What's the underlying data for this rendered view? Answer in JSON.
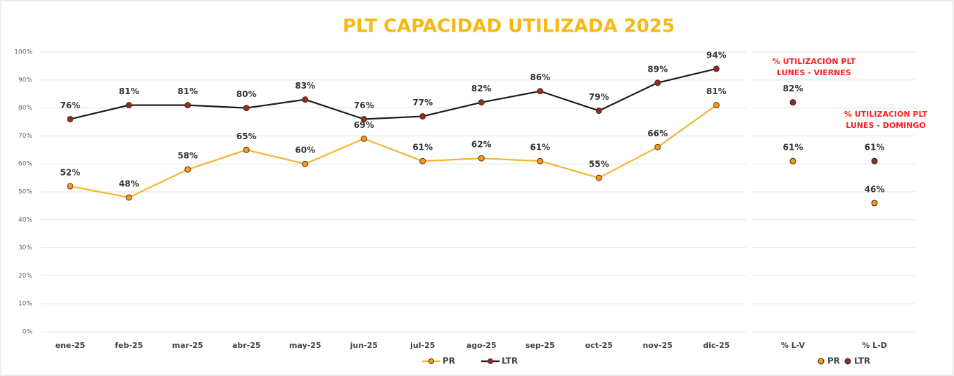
{
  "chart_data": [
    {
      "type": "line",
      "title": "PLT CAPACIDAD UTILIZADA 2025",
      "categories": [
        "ene-25",
        "feb-25",
        "mar-25",
        "abr-25",
        "may-25",
        "jun-25",
        "jul-25",
        "ago-25",
        "sep-25",
        "oct-25",
        "nov-25",
        "dic-25"
      ],
      "series": [
        {
          "name": "PR",
          "color": "#f2b632",
          "marker_color": "#f39c1e",
          "values": [
            52,
            48,
            58,
            65,
            60,
            69,
            61,
            62,
            61,
            55,
            66,
            81
          ],
          "value_labels": [
            "52%",
            "48%",
            "58%",
            "65%",
            "60%",
            "69%",
            "61%",
            "62%",
            "61%",
            "55%",
            "66%",
            "81%"
          ]
        },
        {
          "name": "LTR",
          "color": "#1c1c1c",
          "marker_color": "#8a2f2a",
          "values": [
            76,
            81,
            81,
            80,
            83,
            76,
            77,
            82,
            86,
            79,
            89,
            94
          ],
          "value_labels": [
            "76%",
            "81%",
            "81%",
            "80%",
            "83%",
            "76%",
            "77%",
            "82%",
            "86%",
            "79%",
            "89%",
            "94%"
          ]
        }
      ],
      "ylim": [
        0,
        100
      ],
      "yticks": [
        {
          "value": 0,
          "label": "0%"
        },
        {
          "value": 10,
          "label": "10%"
        },
        {
          "value": 20,
          "label": "20%"
        },
        {
          "value": 30,
          "label": "30%"
        },
        {
          "value": 40,
          "label": "40%"
        },
        {
          "value": 50,
          "label": "50%"
        },
        {
          "value": 60,
          "label": "60%"
        },
        {
          "value": 70,
          "label": "70%"
        },
        {
          "value": 80,
          "label": "80%"
        },
        {
          "value": 90,
          "label": "90%"
        },
        {
          "value": 100,
          "label": "100%"
        }
      ],
      "grid": true
    },
    {
      "type": "dot",
      "categories": [
        "% L-V",
        "% L-D"
      ],
      "series": [
        {
          "name": "PR",
          "color": "#f39c1e",
          "values": [
            61,
            46
          ],
          "value_labels": [
            "61%",
            "46%"
          ]
        },
        {
          "name": "LTR",
          "color": "#8a2f2a",
          "values": [
            82,
            61
          ],
          "value_labels": [
            "82%",
            "61%"
          ]
        }
      ],
      "annotations": [
        {
          "lines": [
            "% UTILIZACIÓN PLT",
            "LUNES - VIERNES"
          ],
          "color": "#ff1f1f"
        },
        {
          "lines": [
            "% UTILIZACIÓN PLT",
            "LUNES - DOMINGO"
          ],
          "color": "#ff1f1f"
        }
      ]
    }
  ]
}
